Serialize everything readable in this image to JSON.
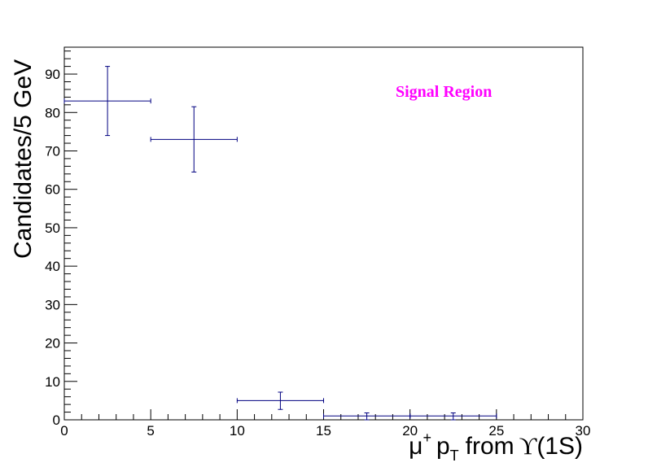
{
  "chart_data": {
    "type": "scatter",
    "style": "histogram points with horizontal bin-width and vertical error bars",
    "xlim": [
      0,
      30
    ],
    "ylim": [
      0,
      97
    ],
    "xticks": [
      0,
      5,
      10,
      15,
      20,
      25,
      30
    ],
    "yticks": [
      0,
      10,
      20,
      30,
      40,
      50,
      60,
      70,
      80,
      90
    ],
    "xticks_text": [
      "0",
      "5",
      "10",
      "15",
      "20",
      "25",
      "30"
    ],
    "yticks_text": [
      "0",
      "10",
      "20",
      "30",
      "40",
      "50",
      "60",
      "70",
      "80",
      "90"
    ],
    "xlabel": {
      "mu": "μ",
      "plus": "+",
      "p": "p",
      "T": "T",
      "from": "from",
      "upsilon": "ϒ",
      "state": "(1S)"
    },
    "ylabel": "Candidates/5 GeV",
    "annotation": {
      "text": "Signal Region",
      "color": "#ff00ff"
    },
    "grid": false,
    "series_color": "#000080",
    "points": [
      {
        "x": 2.5,
        "xlow": 0,
        "xhigh": 5,
        "y": 83,
        "ylow": 74,
        "yhigh": 92
      },
      {
        "x": 7.5,
        "xlow": 5,
        "xhigh": 10,
        "y": 73,
        "ylow": 64.5,
        "yhigh": 81.5
      },
      {
        "x": 12.5,
        "xlow": 10,
        "xhigh": 15,
        "y": 5,
        "ylow": 2.7,
        "yhigh": 7.2
      },
      {
        "x": 17.5,
        "xlow": 15,
        "xhigh": 20,
        "y": 1,
        "ylow": 0,
        "yhigh": 1.8
      },
      {
        "x": 22.5,
        "xlow": 20,
        "xhigh": 25,
        "y": 1,
        "ylow": 0,
        "yhigh": 1.8
      }
    ]
  }
}
